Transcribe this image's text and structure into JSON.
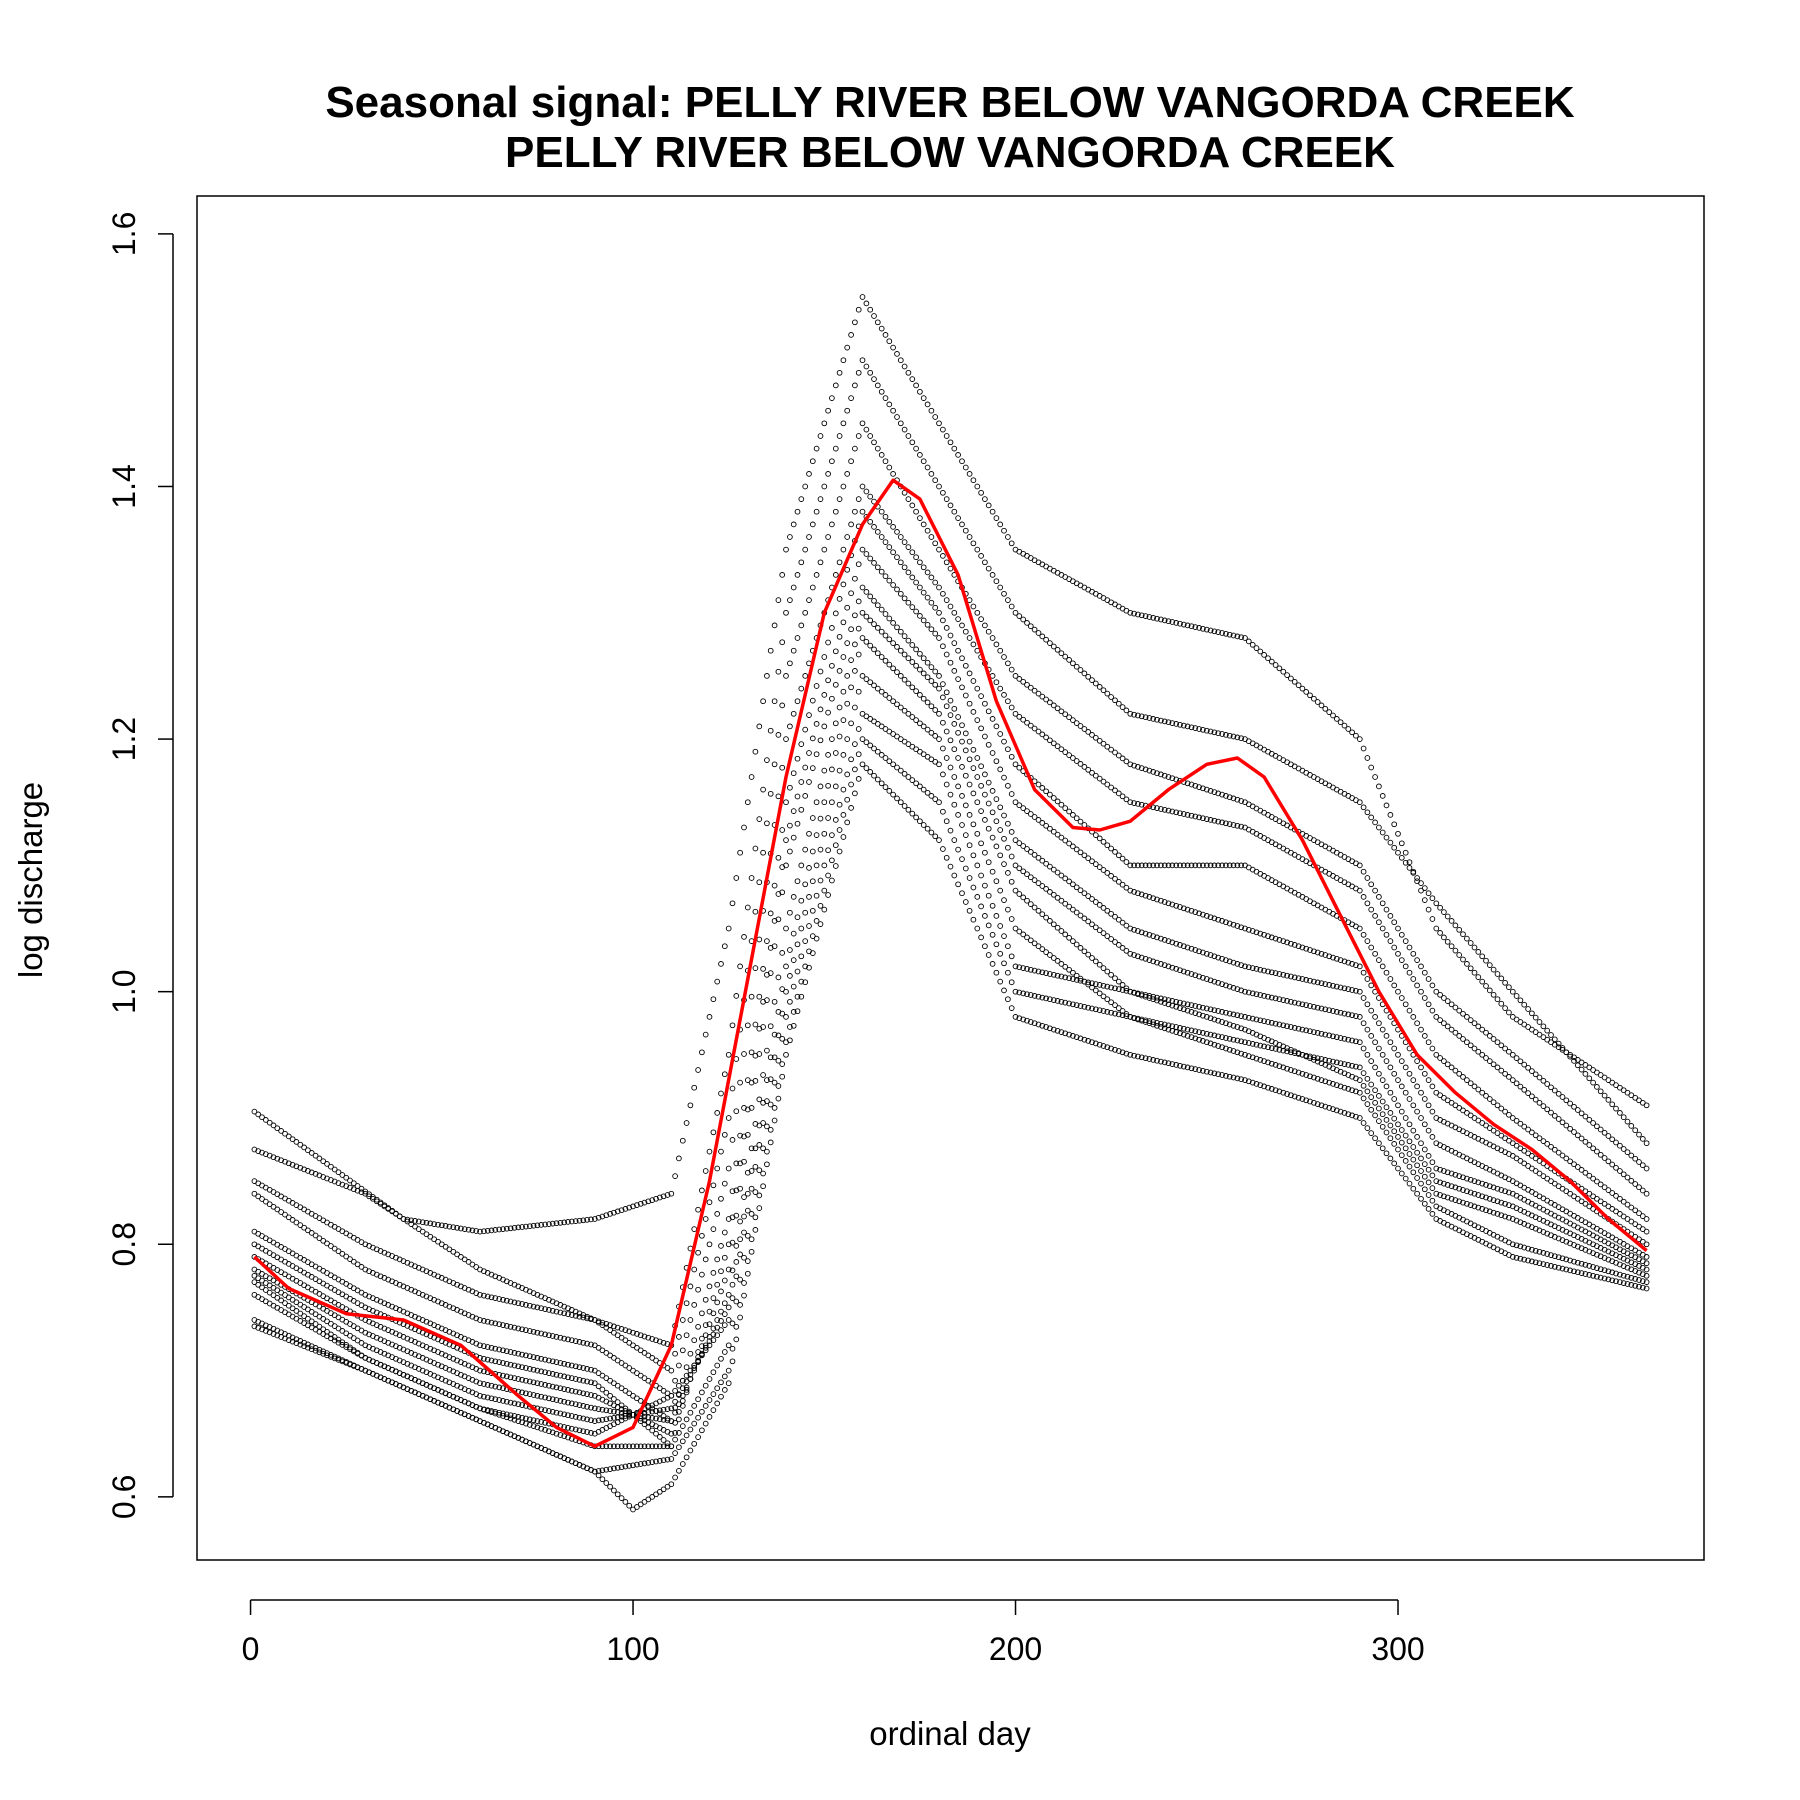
{
  "chart_data": {
    "type": "scatter",
    "title": "Seasonal signal: PELLY RIVER BELOW VANGORDA CREEK",
    "subtitle": "PELLY RIVER BELOW VANGORDA CREEK",
    "xlabel": "ordinal day",
    "ylabel": "log discharge",
    "xlim": [
      -14,
      380
    ],
    "ylim": [
      0.55,
      1.63
    ],
    "x_ticks": [
      0,
      100,
      200,
      300
    ],
    "x_tick_labels": [
      "0",
      "100",
      "200",
      "300"
    ],
    "y_ticks": [
      0.6,
      0.8,
      1.0,
      1.2,
      1.4,
      1.6
    ],
    "y_tick_labels": [
      "0.6",
      "0.8",
      "1.0",
      "1.2",
      "1.4",
      "1.6"
    ],
    "grid": false,
    "legend": "none",
    "point_color": "#000000",
    "curve_color": "#ff0000",
    "annual_traces": [
      {
        "x": [
          1,
          40,
          60,
          90,
          110,
          125,
          140,
          160,
          180,
          200,
          230,
          260,
          290,
          310,
          330,
          365
        ],
        "y": [
          0.905,
          0.82,
          0.81,
          0.82,
          0.84,
          1.05,
          1.35,
          1.55,
          1.45,
          1.35,
          1.3,
          1.28,
          1.2,
          1.05,
          0.98,
          0.91
        ]
      },
      {
        "x": [
          1,
          30,
          60,
          90,
          110,
          125,
          140,
          160,
          180,
          200,
          230,
          260,
          290,
          310,
          330,
          365
        ],
        "y": [
          0.875,
          0.84,
          0.78,
          0.74,
          0.72,
          0.95,
          1.3,
          1.5,
          1.4,
          1.3,
          1.22,
          1.2,
          1.15,
          1.07,
          1.0,
          0.88
        ]
      },
      {
        "x": [
          1,
          30,
          60,
          90,
          110,
          125,
          140,
          160,
          180,
          200,
          230,
          260,
          290,
          310,
          330,
          365
        ],
        "y": [
          0.85,
          0.8,
          0.76,
          0.74,
          0.7,
          0.9,
          1.25,
          1.45,
          1.35,
          1.25,
          1.18,
          1.15,
          1.1,
          1.0,
          0.95,
          0.86
        ]
      },
      {
        "x": [
          1,
          30,
          60,
          90,
          110,
          125,
          140,
          160,
          180,
          200,
          230,
          260,
          290,
          310,
          330,
          365
        ],
        "y": [
          0.84,
          0.78,
          0.74,
          0.72,
          0.68,
          0.86,
          1.2,
          1.4,
          1.32,
          1.22,
          1.15,
          1.13,
          1.08,
          0.98,
          0.93,
          0.84
        ]
      },
      {
        "x": [
          1,
          30,
          60,
          90,
          110,
          125,
          140,
          160,
          180,
          200,
          230,
          260,
          290,
          310,
          330,
          365
        ],
        "y": [
          0.81,
          0.76,
          0.72,
          0.7,
          0.66,
          0.82,
          1.15,
          1.38,
          1.3,
          1.18,
          1.1,
          1.1,
          1.05,
          0.95,
          0.9,
          0.82
        ]
      },
      {
        "x": [
          1,
          30,
          60,
          90,
          110,
          125,
          140,
          160,
          180,
          200,
          230,
          260,
          290,
          310,
          330,
          365
        ],
        "y": [
          0.8,
          0.75,
          0.71,
          0.69,
          0.64,
          0.8,
          1.12,
          1.35,
          1.28,
          1.15,
          1.08,
          1.05,
          1.02,
          0.92,
          0.88,
          0.81
        ]
      },
      {
        "x": [
          1,
          30,
          60,
          90,
          110,
          125,
          140,
          160,
          180,
          200,
          230,
          260,
          290,
          310,
          330,
          365
        ],
        "y": [
          0.79,
          0.74,
          0.7,
          0.68,
          0.65,
          0.78,
          1.1,
          1.32,
          1.25,
          1.12,
          1.05,
          1.02,
          1.0,
          0.9,
          0.87,
          0.8
        ]
      },
      {
        "x": [
          1,
          30,
          60,
          90,
          110,
          125,
          140,
          160,
          180,
          200,
          230,
          260,
          290,
          310,
          330,
          365
        ],
        "y": [
          0.78,
          0.73,
          0.69,
          0.67,
          0.66,
          0.76,
          1.05,
          1.3,
          1.24,
          1.1,
          1.03,
          1.0,
          0.98,
          0.88,
          0.85,
          0.79
        ]
      },
      {
        "x": [
          1,
          30,
          60,
          90,
          110,
          125,
          140,
          160,
          180,
          200,
          230,
          260,
          290,
          310,
          330,
          365
        ],
        "y": [
          0.775,
          0.72,
          0.68,
          0.66,
          0.67,
          0.75,
          1.02,
          1.28,
          1.22,
          1.08,
          1.0,
          0.98,
          0.96,
          0.86,
          0.84,
          0.785
        ]
      },
      {
        "x": [
          1,
          30,
          60,
          90,
          110,
          125,
          140,
          160,
          180,
          200,
          230,
          260,
          290,
          310,
          330,
          365
        ],
        "y": [
          0.77,
          0.71,
          0.67,
          0.65,
          0.68,
          0.74,
          1.0,
          1.25,
          1.2,
          1.05,
          0.98,
          0.96,
          0.94,
          0.85,
          0.83,
          0.78
        ]
      },
      {
        "x": [
          1,
          30,
          60,
          90,
          110,
          125,
          140,
          160,
          180,
          200,
          230,
          260,
          290,
          310,
          330,
          365
        ],
        "y": [
          0.76,
          0.71,
          0.67,
          0.64,
          0.64,
          0.72,
          0.98,
          1.22,
          1.18,
          1.02,
          1.0,
          0.97,
          0.93,
          0.84,
          0.82,
          0.775
        ]
      },
      {
        "x": [
          1,
          30,
          60,
          90,
          110,
          125,
          140,
          160,
          180,
          200,
          230,
          260,
          290,
          310,
          330,
          365
        ],
        "y": [
          0.74,
          0.7,
          0.66,
          0.62,
          0.63,
          0.7,
          0.96,
          1.2,
          1.15,
          1.0,
          0.98,
          0.95,
          0.92,
          0.83,
          0.8,
          0.77
        ]
      },
      {
        "x": [
          1,
          30,
          60,
          90,
          100,
          110,
          125,
          140,
          160,
          180,
          200,
          230,
          260,
          290,
          310,
          330,
          365
        ],
        "y": [
          0.735,
          0.7,
          0.66,
          0.62,
          0.59,
          0.61,
          0.69,
          0.95,
          1.18,
          1.12,
          0.98,
          0.95,
          0.93,
          0.9,
          0.82,
          0.79,
          0.765
        ]
      }
    ],
    "seasonal_curve": {
      "x": [
        1,
        10,
        25,
        40,
        55,
        70,
        80,
        90,
        100,
        110,
        120,
        130,
        140,
        150,
        160,
        168,
        175,
        185,
        195,
        205,
        215,
        222,
        230,
        240,
        250,
        258,
        265,
        275,
        285,
        295,
        305,
        315,
        325,
        335,
        345,
        355,
        365
      ],
      "y": [
        0.79,
        0.765,
        0.745,
        0.74,
        0.72,
        0.68,
        0.655,
        0.64,
        0.655,
        0.72,
        0.85,
        1.01,
        1.17,
        1.3,
        1.37,
        1.405,
        1.39,
        1.33,
        1.23,
        1.16,
        1.13,
        1.128,
        1.135,
        1.16,
        1.18,
        1.185,
        1.17,
        1.12,
        1.06,
        1.0,
        0.95,
        0.92,
        0.895,
        0.875,
        0.85,
        0.82,
        0.795
      ]
    }
  }
}
